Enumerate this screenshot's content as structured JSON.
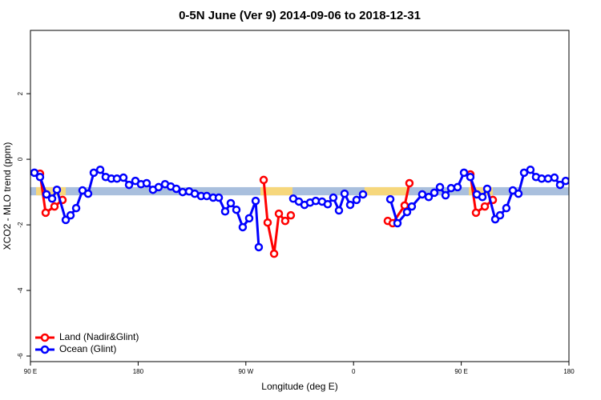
{
  "chart_data": {
    "type": "line",
    "title": "0-5N June (Ver 9)   2014-09-06 to 2018-12-31",
    "x_label": "Longitude (deg E)",
    "y_label": "XCO2 - MLO trend (ppm)",
    "xlim": [
      90,
      540
    ],
    "ylim": [
      -6.17,
      3.93
    ],
    "xticks": [
      {
        "value": 90,
        "label": "90 E"
      },
      {
        "value": 180,
        "label": "180"
      },
      {
        "value": 270,
        "label": "90 W"
      },
      {
        "value": 360,
        "label": "0"
      },
      {
        "value": 450,
        "label": "90 E"
      },
      {
        "value": 540,
        "label": "180"
      }
    ],
    "yticks": [
      -6,
      -4,
      -2,
      0,
      2
    ],
    "legend": "bottom-left",
    "band": {
      "color": "#a9bfdd",
      "ylim": [
        -0.85,
        -1.1
      ]
    },
    "land_band": {
      "color": "#f6d77c",
      "ranges": [
        [
          94.7,
          119.5
        ],
        [
          282.2,
          309.0
        ],
        [
          369.2,
          406.0
        ],
        [
          456.3,
          476.4
        ]
      ]
    },
    "series": [
      {
        "name": "Land (Nadir&Glint)",
        "color": "#ff0000",
        "x": [
          98.0,
          102.7,
          110.1,
          116.8,
          null,
          284.9,
          288.2,
          293.6,
          297.6,
          302.9,
          307.6,
          null,
          388.6,
          392.7,
          402.7,
          406.7,
          null,
          457.6,
          462.3,
          469.7,
          476.4
        ],
        "values": [
          -0.44,
          -1.63,
          -1.44,
          -1.24,
          null,
          -0.63,
          -1.93,
          -2.88,
          -1.66,
          -1.88,
          -1.71,
          null,
          -1.88,
          -1.95,
          -1.41,
          -0.73,
          null,
          -0.46,
          -1.63,
          -1.44,
          -1.24
        ]
      },
      {
        "name": "Ocean (Glint)",
        "color": "#0000ff",
        "x": [
          93.3,
          98.0,
          103.4,
          108.1,
          112.1,
          119.5,
          123.5,
          128.2,
          133.5,
          138.2,
          142.9,
          148.3,
          152.9,
          157.6,
          162.3,
          167.7,
          172.4,
          177.7,
          182.4,
          187.1,
          192.4,
          197.1,
          202.5,
          207.2,
          211.9,
          217.2,
          222.6,
          227.3,
          232.6,
          237.3,
          242.7,
          247.4,
          252.7,
          257.4,
          262.1,
          267.4,
          272.8,
          278.2,
          280.8,
          null,
          309.6,
          314.3,
          319.0,
          323.7,
          328.4,
          333.7,
          338.4,
          343.1,
          347.8,
          352.5,
          357.2,
          362.5,
          367.9,
          null,
          390.7,
          396.7,
          404.7,
          408.7,
          417.4,
          422.8,
          427.5,
          432.2,
          436.9,
          441.5,
          446.9,
          452.3,
          457.6,
          463.0,
          467.7,
          471.7,
          478.4,
          482.4,
          487.7,
          493.1,
          497.8,
          502.5,
          507.8,
          512.5,
          517.2,
          522.6,
          527.9,
          532.6,
          537.3
        ],
        "values": [
          -0.41,
          -0.54,
          -1.07,
          -1.2,
          -0.93,
          -1.85,
          -1.71,
          -1.49,
          -0.95,
          -1.05,
          -0.41,
          -0.32,
          -0.54,
          -0.59,
          -0.59,
          -0.56,
          -0.78,
          -0.66,
          -0.76,
          -0.73,
          -0.93,
          -0.85,
          -0.76,
          -0.83,
          -0.9,
          -1.0,
          -0.98,
          -1.05,
          -1.12,
          -1.12,
          -1.17,
          -1.17,
          -1.59,
          -1.34,
          -1.54,
          -2.07,
          -1.8,
          -1.27,
          -2.68,
          null,
          -1.2,
          -1.29,
          -1.39,
          -1.32,
          -1.27,
          -1.29,
          -1.37,
          -1.17,
          -1.56,
          -1.05,
          -1.39,
          -1.24,
          -1.07,
          null,
          -1.22,
          -1.95,
          -1.61,
          -1.44,
          -1.07,
          -1.15,
          -1.02,
          -0.85,
          -1.1,
          -0.88,
          -0.85,
          -0.41,
          -0.54,
          -1.07,
          -1.15,
          -0.9,
          -1.83,
          -1.71,
          -1.49,
          -0.95,
          -1.05,
          -0.41,
          -0.32,
          -0.54,
          -0.59,
          -0.59,
          -0.56,
          -0.78,
          -0.66
        ]
      }
    ]
  }
}
